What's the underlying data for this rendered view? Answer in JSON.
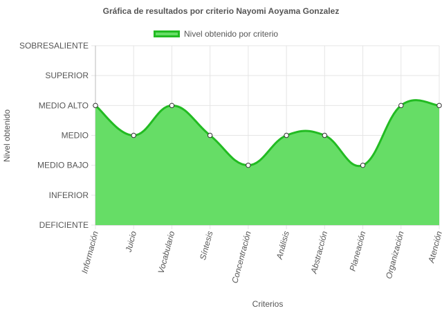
{
  "chart_data": {
    "type": "area",
    "title": "Gráfica de resultados por criterio Nayomi Aoyama Gonzalez",
    "xlabel": "Criterios",
    "ylabel": "Nivel obtenido",
    "legend": {
      "position": "top",
      "entries": [
        "Nivel obtenido por criterio"
      ]
    },
    "grid": true,
    "y_levels": [
      "DEFICIENTE",
      "INFERIOR",
      "MEDIO BAJO",
      "MEDIO",
      "MEDIO ALTO",
      "SUPERIOR",
      "SOBRESALIENTE"
    ],
    "ylim": [
      1,
      7
    ],
    "categories": [
      "Información",
      "Juicio",
      "Vocabulario",
      "Síntesis",
      "Concentración",
      "Análisis",
      "Abstracción",
      "Planeación",
      "Organización",
      "Atención"
    ],
    "series": [
      {
        "name": "Nivel obtenido por criterio",
        "values": [
          5,
          4,
          5,
          4,
          3,
          4,
          4,
          3,
          5,
          5
        ]
      }
    ],
    "colors": {
      "fill": "#66dd66",
      "line": "#22bb22",
      "point_fill": "#ffffff",
      "point_stroke": "#333333",
      "grid": "#e5e5e5"
    }
  }
}
